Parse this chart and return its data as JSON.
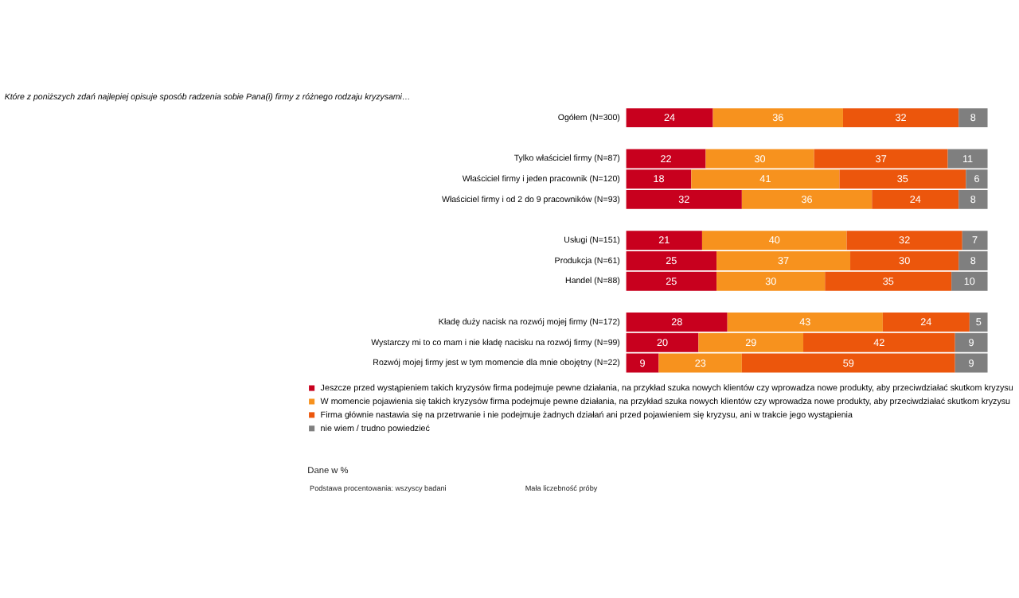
{
  "chart_data": {
    "type": "bar",
    "orientation": "horizontal",
    "stacked": true,
    "data_labels": true,
    "tick_labels": "y",
    "grid": false,
    "legend": "bottom",
    "title": "Które z poniższych zdań najlepiej opisuje sposób radzenia sobie Pana(i) firmy z różnego rodzaju kryzysami…",
    "categories": [
      "Ogółem (N=300)",
      null,
      "Tylko właściciel firmy (N=87)",
      "Właściciel firmy i jeden pracownik (N=120)",
      "Właściciel firmy i od 2 do 9 pracowników (N=93)",
      null,
      "Usługi (N=151)",
      "Produkcja (N=61)",
      "Handel (N=88)",
      null,
      "Kładę duży nacisk na rozwój mojej firmy (N=172)",
      "Wystarczy mi to co mam i nie kładę nacisku na rozwój firmy (N=99)",
      "Rozwój mojej firmy jest w tym momencie dla mnie obojętny (N=22)"
    ],
    "series": [
      {
        "name": "Jeszcze przed wystąpieniem takich kryzysów firma podejmuje pewne działania, na przykład szuka nowych klientów czy wprowadza nowe produkty, aby przeciwdziałać skutkom kryzysu",
        "color": "#c8001e",
        "values": [
          24,
          null,
          22,
          18,
          32,
          null,
          21,
          25,
          25,
          null,
          28,
          20,
          9
        ]
      },
      {
        "name": "W momencie pojawienia się takich kryzysów firma podejmuje pewne działania, na przykład szuka nowych klientów czy wprowadza nowe produkty, aby przeciwdziałać skutkom kryzysu",
        "color": "#f7921e",
        "values": [
          36,
          null,
          30,
          41,
          36,
          null,
          40,
          37,
          30,
          null,
          43,
          29,
          23
        ]
      },
      {
        "name": "Firma głównie nastawia się na przetrwanie i nie podejmuje żadnych działań ani przed pojawieniem się kryzysu, ani w trakcie jego wystąpienia",
        "color": "#ec560c",
        "values": [
          32,
          null,
          37,
          35,
          24,
          null,
          32,
          30,
          35,
          null,
          24,
          42,
          59
        ]
      },
      {
        "name": "nie wiem / trudno powiedzieć",
        "color": "#7f7f7f",
        "values": [
          8,
          null,
          11,
          6,
          8,
          null,
          7,
          8,
          10,
          null,
          5,
          9,
          9
        ]
      }
    ],
    "annotations": [
      "Dane w %",
      "Podstawa procentowania: wszyscy badani",
      "Mała liczebność próby"
    ]
  }
}
